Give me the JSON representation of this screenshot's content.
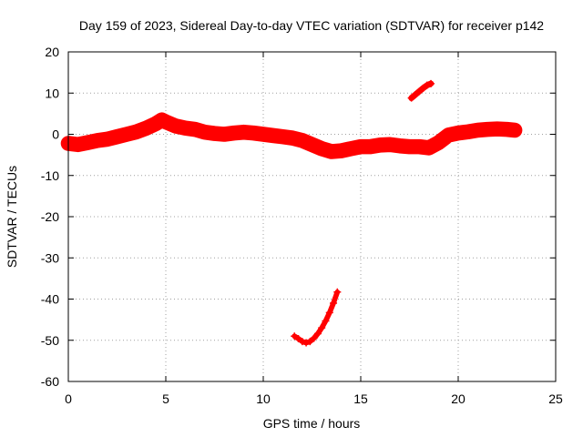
{
  "chart_data": {
    "type": "scatter",
    "title": "Day 159 of 2023, Sidereal Day-to-day VTEC variation (SDTVAR) for receiver p142",
    "xlabel": "GPS time / hours",
    "ylabel": "SDTVAR / TECUs",
    "xlim": [
      0,
      25
    ],
    "ylim": [
      -60,
      20
    ],
    "xticks": [
      0,
      5,
      10,
      15,
      20,
      25
    ],
    "yticks": [
      -60,
      -50,
      -40,
      -30,
      -20,
      -10,
      0,
      10,
      20
    ],
    "xtick_labels": [
      "0",
      "5",
      "10",
      "15",
      "20",
      "25"
    ],
    "ytick_labels": [
      "-60",
      "-50",
      "-40",
      "-30",
      "-20",
      "-10",
      "0",
      "10",
      "20"
    ],
    "grid": true,
    "color": "#ff0000",
    "marker": "plus",
    "series": [
      {
        "name": "main-band",
        "spread": 3,
        "points": [
          [
            0,
            -2.2
          ],
          [
            0.5,
            -2.5
          ],
          [
            1,
            -2
          ],
          [
            1.5,
            -1.5
          ],
          [
            2,
            -1.2
          ],
          [
            2.5,
            -0.6
          ],
          [
            3,
            0
          ],
          [
            3.5,
            0.6
          ],
          [
            4,
            1.5
          ],
          [
            4.5,
            2.6
          ],
          [
            4.8,
            3.5
          ],
          [
            5,
            3
          ],
          [
            5.5,
            2
          ],
          [
            6,
            1.5
          ],
          [
            6.5,
            1.2
          ],
          [
            7,
            0.5
          ],
          [
            7.5,
            0.2
          ],
          [
            8,
            0
          ],
          [
            8.5,
            0.3
          ],
          [
            9,
            0.5
          ],
          [
            9.5,
            0.3
          ],
          [
            10,
            0
          ],
          [
            10.5,
            -0.3
          ],
          [
            11,
            -0.6
          ],
          [
            11.5,
            -0.9
          ],
          [
            12,
            -1.5
          ],
          [
            12.5,
            -2.5
          ],
          [
            13,
            -3.5
          ],
          [
            13.5,
            -4.2
          ],
          [
            14,
            -4
          ],
          [
            14.5,
            -3.5
          ],
          [
            15,
            -3
          ],
          [
            15.5,
            -3
          ],
          [
            16,
            -2.6
          ],
          [
            16.5,
            -2.5
          ],
          [
            17,
            -2.8
          ],
          [
            17.5,
            -3
          ],
          [
            18,
            -3
          ],
          [
            18.5,
            -3.3
          ],
          [
            19,
            -2
          ],
          [
            19.5,
            -0.2
          ],
          [
            20,
            0.3
          ],
          [
            20.5,
            0.6
          ],
          [
            21,
            1
          ],
          [
            21.5,
            1.2
          ],
          [
            22,
            1.3
          ],
          [
            22.5,
            1.2
          ],
          [
            22.9,
            1
          ]
        ]
      },
      {
        "name": "upper-segment",
        "spread": 0.8,
        "points": [
          [
            17.6,
            8.8
          ],
          [
            17.8,
            9.6
          ],
          [
            18,
            10.4
          ],
          [
            18.2,
            11.2
          ],
          [
            18.4,
            11.9
          ],
          [
            18.6,
            12.3
          ]
        ]
      },
      {
        "name": "lower-arc",
        "spread": 0.6,
        "points": [
          [
            11.6,
            -49
          ],
          [
            11.8,
            -49.6
          ],
          [
            12,
            -50.3
          ],
          [
            12.2,
            -50.6
          ],
          [
            12.4,
            -50.3
          ],
          [
            12.6,
            -49.5
          ],
          [
            12.8,
            -48.4
          ],
          [
            13,
            -47
          ],
          [
            13.2,
            -45.3
          ],
          [
            13.4,
            -43.3
          ],
          [
            13.6,
            -41
          ],
          [
            13.8,
            -38.3
          ]
        ]
      }
    ]
  }
}
